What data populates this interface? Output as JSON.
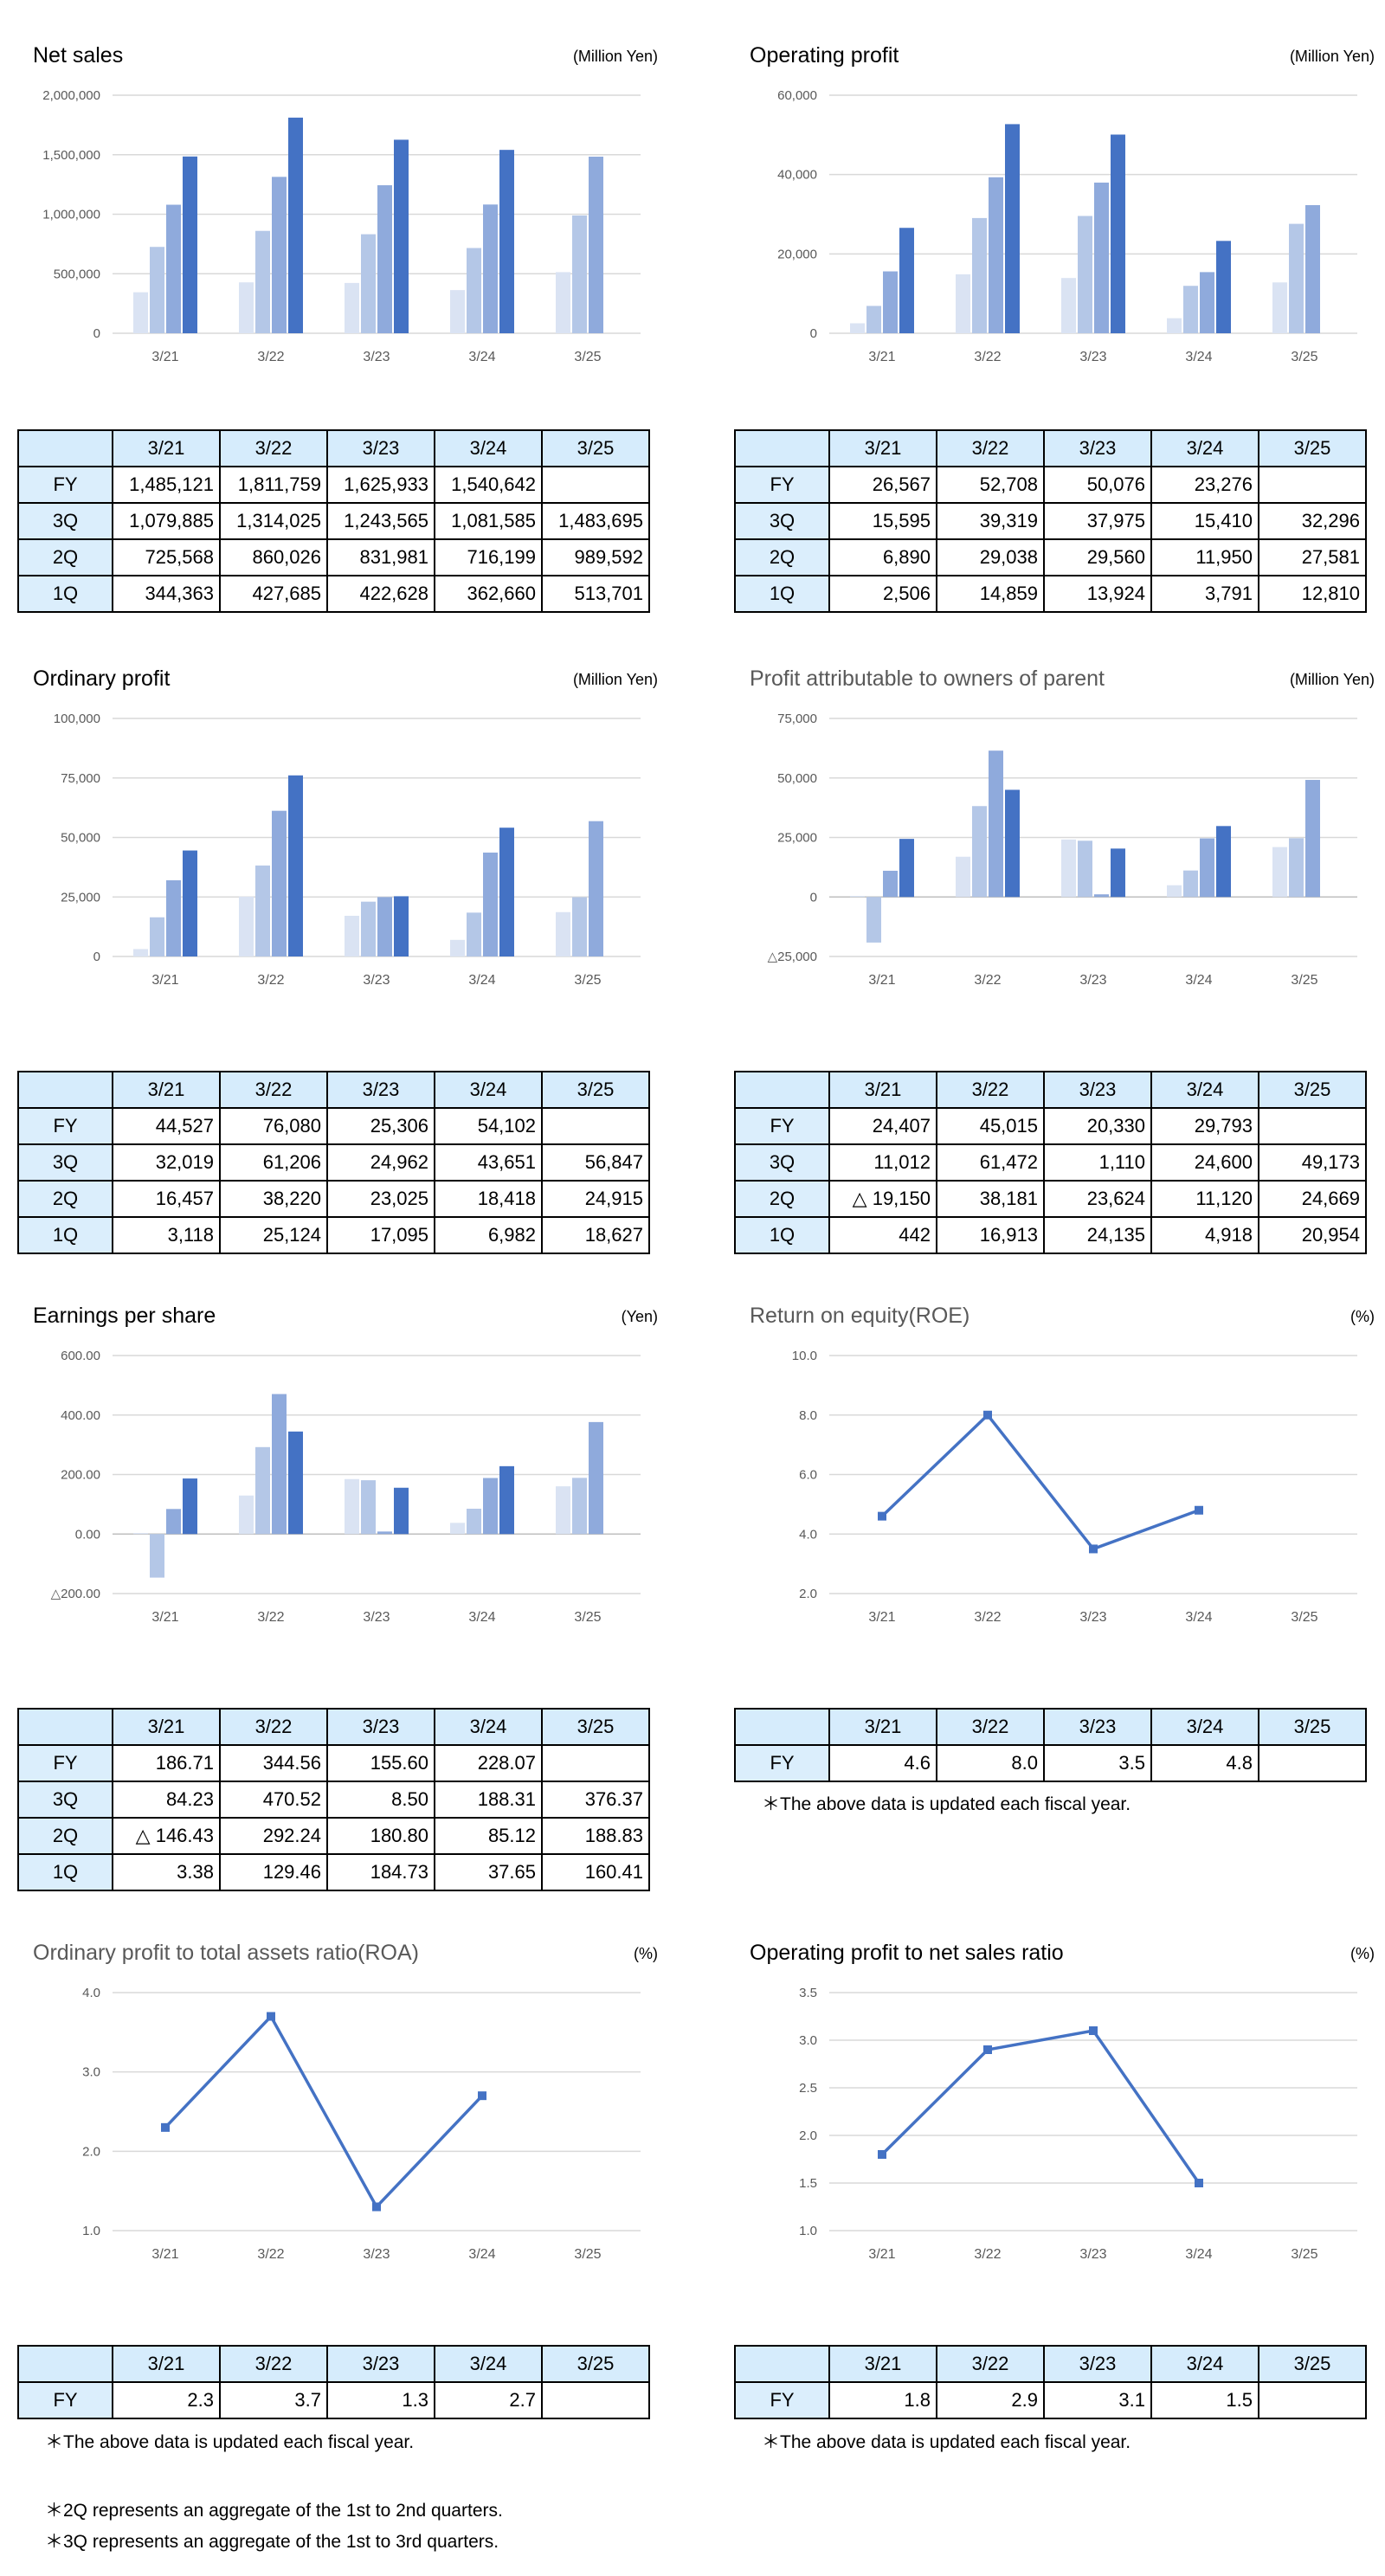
{
  "legend_labels": [
    "1Q",
    "2Q",
    "3Q",
    "FY"
  ],
  "years": [
    "3/21",
    "3/22",
    "3/23",
    "3/24",
    "3/25"
  ],
  "series_colors": {
    "1Q": "#dae3f3",
    "2Q": "#b4c7e7",
    "3Q": "#8faadc",
    "FY": "#4472c4"
  },
  "notes": {
    "fiscal_year_note": "＊The above data is updated each fiscal year.",
    "note_2q": "＊2Q represents an aggregate of the 1st to 2nd quarters.",
    "note_3q": "＊3Q represents an aggregate of the 1st to 3rd quarters."
  },
  "chart_data": [
    {
      "id": "net_sales",
      "type": "bar",
      "title": "Net sales",
      "unit": "(Million Yen)",
      "categories": [
        "3/21",
        "3/22",
        "3/23",
        "3/24",
        "3/25"
      ],
      "ylim": [
        0,
        2000000
      ],
      "yticks": [
        0,
        500000,
        1000000,
        1500000,
        2000000
      ],
      "ytick_labels": [
        "0",
        "500,000",
        "1,000,000",
        "1,500,000",
        "2,000,000"
      ],
      "series": [
        {
          "name": "1Q",
          "values": [
            344363,
            427685,
            422628,
            362660,
            513701
          ]
        },
        {
          "name": "2Q",
          "values": [
            725568,
            860026,
            831981,
            716199,
            989592
          ]
        },
        {
          "name": "3Q",
          "values": [
            1079885,
            1314025,
            1243565,
            1081585,
            1483695
          ]
        },
        {
          "name": "FY",
          "values": [
            1485121,
            1811759,
            1625933,
            1540642,
            null
          ]
        }
      ]
    },
    {
      "id": "operating_profit",
      "type": "bar",
      "title": "Operating profit",
      "unit": "(Million Yen)",
      "categories": [
        "3/21",
        "3/22",
        "3/23",
        "3/24",
        "3/25"
      ],
      "ylim": [
        0,
        60000
      ],
      "yticks": [
        0,
        20000,
        40000,
        60000
      ],
      "ytick_labels": [
        "0",
        "20,000",
        "40,000",
        "60,000"
      ],
      "series": [
        {
          "name": "1Q",
          "values": [
            2506,
            14859,
            13924,
            3791,
            12810
          ]
        },
        {
          "name": "2Q",
          "values": [
            6890,
            29038,
            29560,
            11950,
            27581
          ]
        },
        {
          "name": "3Q",
          "values": [
            15595,
            39319,
            37975,
            15410,
            32296
          ]
        },
        {
          "name": "FY",
          "values": [
            26567,
            52708,
            50076,
            23276,
            null
          ]
        }
      ]
    },
    {
      "id": "ordinary_profit",
      "type": "bar",
      "title": "Ordinary profit",
      "unit": "(Million Yen)",
      "categories": [
        "3/21",
        "3/22",
        "3/23",
        "3/24",
        "3/25"
      ],
      "ylim": [
        0,
        100000
      ],
      "yticks": [
        0,
        25000,
        50000,
        75000,
        100000
      ],
      "ytick_labels": [
        "0",
        "25,000",
        "50,000",
        "75,000",
        "100,000"
      ],
      "series": [
        {
          "name": "1Q",
          "values": [
            3118,
            25124,
            17095,
            6982,
            18627
          ]
        },
        {
          "name": "2Q",
          "values": [
            16457,
            38220,
            23025,
            18418,
            24915
          ]
        },
        {
          "name": "3Q",
          "values": [
            32019,
            61206,
            24962,
            43651,
            56847
          ]
        },
        {
          "name": "FY",
          "values": [
            44527,
            76080,
            25306,
            54102,
            null
          ]
        }
      ]
    },
    {
      "id": "profit_parent",
      "type": "bar",
      "title": "Profit attributable to owners of parent",
      "unit": "(Million Yen)",
      "categories": [
        "3/21",
        "3/22",
        "3/23",
        "3/24",
        "3/25"
      ],
      "ylim": [
        -25000,
        75000
      ],
      "yticks": [
        -25000,
        0,
        25000,
        50000,
        75000
      ],
      "ytick_labels": [
        "△25,000",
        "0",
        "25,000",
        "50,000",
        "75,000"
      ],
      "series": [
        {
          "name": "1Q",
          "values": [
            442,
            16913,
            24135,
            4918,
            20954
          ]
        },
        {
          "name": "2Q",
          "values": [
            -19150,
            38181,
            23624,
            11120,
            24669
          ]
        },
        {
          "name": "3Q",
          "values": [
            11012,
            61472,
            1110,
            24600,
            49173
          ]
        },
        {
          "name": "FY",
          "values": [
            24407,
            45015,
            20330,
            29793,
            null
          ]
        }
      ]
    },
    {
      "id": "eps",
      "type": "bar",
      "title": "Earnings per share",
      "unit": "(Yen)",
      "categories": [
        "3/21",
        "3/22",
        "3/23",
        "3/24",
        "3/25"
      ],
      "ylim": [
        -200,
        600
      ],
      "yticks": [
        -200,
        0,
        200,
        400,
        600
      ],
      "ytick_labels": [
        "△200.00",
        "0.00",
        "200.00",
        "400.00",
        "600.00"
      ],
      "series": [
        {
          "name": "1Q",
          "values": [
            3.38,
            129.46,
            184.73,
            37.65,
            160.41
          ]
        },
        {
          "name": "2Q",
          "values": [
            -146.43,
            292.24,
            180.8,
            85.12,
            188.83
          ]
        },
        {
          "name": "3Q",
          "values": [
            84.23,
            470.52,
            8.5,
            188.31,
            376.37
          ]
        },
        {
          "name": "FY",
          "values": [
            186.71,
            344.56,
            155.6,
            228.07,
            null
          ]
        }
      ]
    },
    {
      "id": "roe",
      "type": "line",
      "title": "Return on equity(ROE)",
      "unit": "(%)",
      "categories": [
        "3/21",
        "3/22",
        "3/23",
        "3/24",
        "3/25"
      ],
      "ylim": [
        2,
        10
      ],
      "yticks": [
        2,
        4,
        6,
        8,
        10
      ],
      "ytick_labels": [
        "2.0",
        "4.0",
        "6.0",
        "8.0",
        "10.0"
      ],
      "series": [
        {
          "name": "FY",
          "values": [
            4.6,
            8.0,
            3.5,
            4.8,
            null
          ]
        }
      ]
    },
    {
      "id": "roa",
      "type": "line",
      "title": "Ordinary profit to total assets ratio(ROA)",
      "unit": "(%)",
      "categories": [
        "3/21",
        "3/22",
        "3/23",
        "3/24",
        "3/25"
      ],
      "ylim": [
        1,
        4
      ],
      "yticks": [
        1,
        2,
        3,
        4
      ],
      "ytick_labels": [
        "1.0",
        "2.0",
        "3.0",
        "4.0"
      ],
      "series": [
        {
          "name": "FY",
          "values": [
            2.3,
            3.7,
            1.3,
            2.7,
            null
          ]
        }
      ]
    },
    {
      "id": "op_margin",
      "type": "line",
      "title": "Operating profit to net sales ratio",
      "unit": "(%)",
      "categories": [
        "3/21",
        "3/22",
        "3/23",
        "3/24",
        "3/25"
      ],
      "ylim": [
        1,
        3.5
      ],
      "yticks": [
        1,
        1.5,
        2,
        2.5,
        3,
        3.5
      ],
      "ytick_labels": [
        "1.0",
        "1.5",
        "2.0",
        "2.5",
        "3.0",
        "3.5"
      ],
      "series": [
        {
          "name": "FY",
          "values": [
            1.8,
            2.9,
            3.1,
            1.5,
            null
          ]
        }
      ]
    }
  ],
  "tables": {
    "net_sales": [
      [
        "FY",
        "1,485,121",
        "1,811,759",
        "1,625,933",
        "1,540,642",
        ""
      ],
      [
        "3Q",
        "1,079,885",
        "1,314,025",
        "1,243,565",
        "1,081,585",
        "1,483,695"
      ],
      [
        "2Q",
        "725,568",
        "860,026",
        "831,981",
        "716,199",
        "989,592"
      ],
      [
        "1Q",
        "344,363",
        "427,685",
        "422,628",
        "362,660",
        "513,701"
      ]
    ],
    "operating_profit": [
      [
        "FY",
        "26,567",
        "52,708",
        "50,076",
        "23,276",
        ""
      ],
      [
        "3Q",
        "15,595",
        "39,319",
        "37,975",
        "15,410",
        "32,296"
      ],
      [
        "2Q",
        "6,890",
        "29,038",
        "29,560",
        "11,950",
        "27,581"
      ],
      [
        "1Q",
        "2,506",
        "14,859",
        "13,924",
        "3,791",
        "12,810"
      ]
    ],
    "ordinary_profit": [
      [
        "FY",
        "44,527",
        "76,080",
        "25,306",
        "54,102",
        ""
      ],
      [
        "3Q",
        "32,019",
        "61,206",
        "24,962",
        "43,651",
        "56,847"
      ],
      [
        "2Q",
        "16,457",
        "38,220",
        "23,025",
        "18,418",
        "24,915"
      ],
      [
        "1Q",
        "3,118",
        "25,124",
        "17,095",
        "6,982",
        "18,627"
      ]
    ],
    "profit_parent": [
      [
        "FY",
        "24,407",
        "45,015",
        "20,330",
        "29,793",
        ""
      ],
      [
        "3Q",
        "11,012",
        "61,472",
        "1,110",
        "24,600",
        "49,173"
      ],
      [
        "2Q",
        "△ 19,150",
        "38,181",
        "23,624",
        "11,120",
        "24,669"
      ],
      [
        "1Q",
        "442",
        "16,913",
        "24,135",
        "4,918",
        "20,954"
      ]
    ],
    "eps": [
      [
        "FY",
        "186.71",
        "344.56",
        "155.60",
        "228.07",
        ""
      ],
      [
        "3Q",
        "84.23",
        "470.52",
        "8.50",
        "188.31",
        "376.37"
      ],
      [
        "2Q",
        "△ 146.43",
        "292.24",
        "180.80",
        "85.12",
        "188.83"
      ],
      [
        "1Q",
        "3.38",
        "129.46",
        "184.73",
        "37.65",
        "160.41"
      ]
    ],
    "roe": [
      [
        "FY",
        "4.6",
        "8.0",
        "3.5",
        "4.8",
        ""
      ]
    ],
    "roa": [
      [
        "FY",
        "2.3",
        "3.7",
        "1.3",
        "2.7",
        ""
      ]
    ],
    "op_margin": [
      [
        "FY",
        "1.8",
        "2.9",
        "3.1",
        "1.5",
        ""
      ]
    ]
  }
}
